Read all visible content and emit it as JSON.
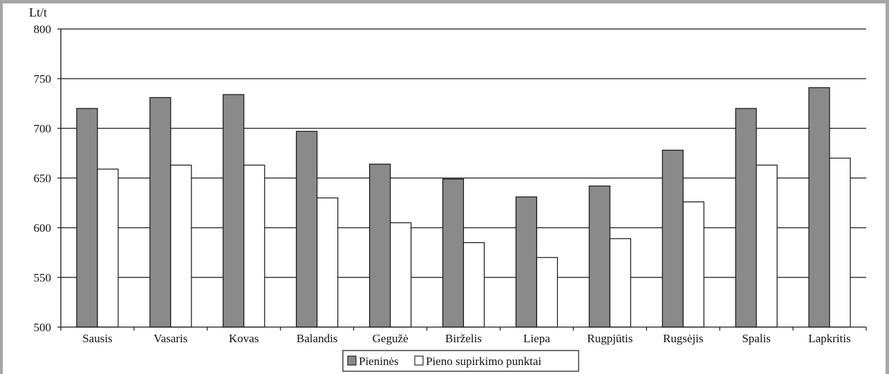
{
  "chart_data": {
    "type": "bar",
    "ylabel": "Lt/t",
    "ylim": [
      500,
      800
    ],
    "yticks": [
      500,
      550,
      600,
      650,
      700,
      750,
      800
    ],
    "grid": true,
    "legend_position": "bottom",
    "categories": [
      "Sausis",
      "Vasaris",
      "Kovas",
      "Balandis",
      "Gegužė",
      "Birželis",
      "Liepa",
      "Rugpjūtis",
      "Rugsėjis",
      "Spalis",
      "Lapkritis"
    ],
    "series": [
      {
        "name": "Pieninės",
        "color": "#8a8a8a",
        "values": [
          720,
          731,
          734,
          697,
          664,
          649,
          631,
          642,
          678,
          720,
          741
        ]
      },
      {
        "name": "Pieno supirkimo punktai",
        "color": "#ffffff",
        "values": [
          659,
          663,
          663,
          630,
          605,
          585,
          570,
          589,
          626,
          663,
          670
        ]
      }
    ]
  }
}
